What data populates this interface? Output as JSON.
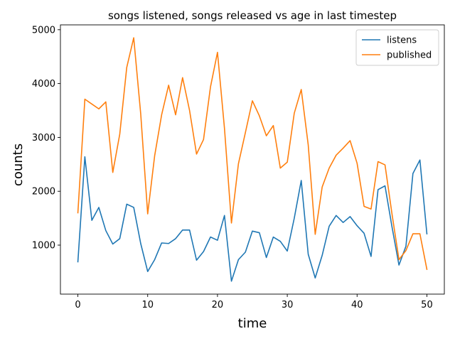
{
  "chart_data": {
    "type": "line",
    "title": "songs listened, songs released vs age in last timestep",
    "xlabel": "time",
    "ylabel": "counts",
    "xlim": [
      -2.5,
      52.5
    ],
    "ylim": [
      90,
      5090
    ],
    "xticks": [
      0,
      10,
      20,
      30,
      40,
      50
    ],
    "yticks": [
      1000,
      2000,
      3000,
      4000,
      5000
    ],
    "grid": false,
    "legend_position": "top-right",
    "x": [
      0,
      1,
      2,
      3,
      4,
      5,
      6,
      7,
      8,
      9,
      10,
      11,
      12,
      13,
      14,
      15,
      16,
      17,
      18,
      19,
      20,
      21,
      22,
      23,
      24,
      25,
      26,
      27,
      28,
      29,
      30,
      31,
      32,
      33,
      34,
      35,
      36,
      37,
      38,
      39,
      40,
      41,
      42,
      43,
      44,
      45,
      46,
      47,
      48,
      49,
      50
    ],
    "series": [
      {
        "name": "listens",
        "color": "#1f77b4",
        "values": [
          690,
          2640,
          1460,
          1700,
          1270,
          1020,
          1120,
          1760,
          1700,
          1030,
          510,
          730,
          1040,
          1030,
          1120,
          1280,
          1280,
          720,
          880,
          1150,
          1090,
          1550,
          330,
          730,
          870,
          1260,
          1230,
          770,
          1150,
          1070,
          890,
          1500,
          2200,
          830,
          390,
          810,
          1350,
          1550,
          1420,
          1530,
          1360,
          1220,
          790,
          2030,
          2100,
          1340,
          630,
          980,
          2330,
          2580,
          1210
        ]
      },
      {
        "name": "published",
        "color": "#ff7f0e",
        "values": [
          1600,
          3710,
          3620,
          3530,
          3660,
          2350,
          3060,
          4300,
          4850,
          3440,
          1580,
          2660,
          3420,
          3970,
          3420,
          4110,
          3500,
          2690,
          2960,
          3940,
          4580,
          3170,
          1410,
          2510,
          3090,
          3680,
          3400,
          3030,
          3220,
          2430,
          2540,
          3450,
          3890,
          2860,
          1200,
          2080,
          2430,
          2670,
          2800,
          2940,
          2520,
          1720,
          1670,
          2550,
          2490,
          1580,
          730,
          900,
          1210,
          1210,
          550
        ]
      }
    ]
  }
}
